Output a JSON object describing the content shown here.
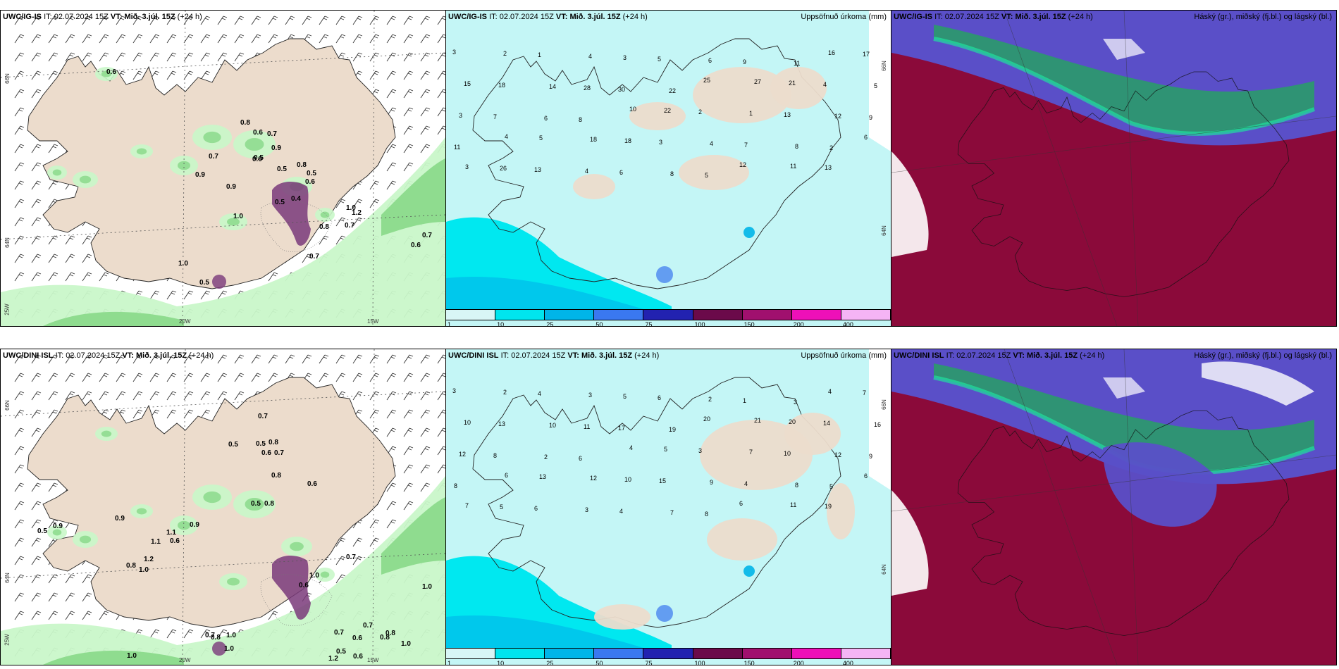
{
  "panels": [
    {
      "id": "p1",
      "header": {
        "model": "UWC/IG-IS",
        "it_label": "IT:",
        "it_value": "02.07.2024 15Z",
        "vt_label": "VT: Mið. 3.júl. 15Z",
        "lead": "(+24 h)"
      },
      "right_title": "",
      "axis": {
        "lat_top": "66N",
        "lat_mid": "64N",
        "lon_left": "25W",
        "lon_a": "20W",
        "lon_b": "15W"
      },
      "labels": [
        {
          "t": "0.6",
          "a": "nw"
        },
        {
          "t": "0.8",
          "a": "c1"
        },
        {
          "t": "0.6",
          "a": "c2"
        },
        {
          "t": "0.7",
          "a": "c3"
        },
        {
          "t": "0.9",
          "a": "c4"
        },
        {
          "t": "0.5",
          "a": "c5"
        },
        {
          "t": "0.9",
          "a": "c6"
        },
        {
          "t": "0.7",
          "a": "w1"
        },
        {
          "t": "0.5",
          "a": "c7"
        },
        {
          "t": "0.8",
          "a": "c8"
        },
        {
          "t": "0.5",
          "a": "c9"
        },
        {
          "t": "0.6",
          "a": "c10"
        },
        {
          "t": "0.9",
          "a": "w2"
        },
        {
          "t": "0.9",
          "a": "w3"
        },
        {
          "t": "0.5",
          "a": "g1"
        },
        {
          "t": "0.4",
          "a": "g2"
        },
        {
          "t": "1.0",
          "a": "w4"
        },
        {
          "t": "1.0",
          "a": "e1"
        },
        {
          "t": "1.2",
          "a": "e2"
        },
        {
          "t": "0.8",
          "a": "e3"
        },
        {
          "t": "0.7",
          "a": "e4"
        },
        {
          "t": "0.7",
          "a": "e5"
        },
        {
          "t": "0.6",
          "a": "e6"
        },
        {
          "t": "1.0",
          "a": "s1"
        },
        {
          "t": "0.5",
          "a": "s2"
        },
        {
          "t": "0.7",
          "a": "s3"
        }
      ]
    },
    {
      "id": "p2",
      "header": {
        "model": "UWC/IG-IS",
        "it_label": "IT:",
        "it_value": "02.07.2024 15Z",
        "vt_label": "VT: Mið. 3.júl. 15Z",
        "lead": "(+24 h)"
      },
      "right_title": "Uppsöfnuð úrkoma (mm)",
      "axis": {
        "lat_top": "66N",
        "lat_mid": "64N"
      },
      "colorbar": {
        "ticks": [
          "1",
          "10",
          "25",
          "50",
          "75",
          "100",
          "150",
          "200",
          "400"
        ],
        "colors": [
          "#d8f6f6",
          "#00e5ee",
          "#00b5e8",
          "#3a78f0",
          "#2222b0",
          "#6b0a4a",
          "#a0106e",
          "#ee10b8",
          "#f5b4f5"
        ]
      },
      "labels": [
        "3",
        "2",
        "1",
        "4",
        "3",
        "5",
        "6",
        "9",
        "11",
        "16",
        "17",
        "15",
        "18",
        "14",
        "28",
        "30",
        "22",
        "25",
        "27",
        "21",
        "4",
        "5",
        "3",
        "7",
        "6",
        "8",
        "10",
        "22",
        "2",
        "1",
        "13",
        "12",
        "9",
        "11",
        "4",
        "5",
        "18",
        "18",
        "3",
        "4",
        "7",
        "8",
        "2",
        "6",
        "3",
        "26",
        "13",
        "4",
        "6",
        "8",
        "5",
        "12",
        "11",
        "13"
      ]
    },
    {
      "id": "p3",
      "header": {
        "model": "UWC/IG-IS",
        "it_label": "IT:",
        "it_value": "02.07.2024 15Z",
        "vt_label": "VT: Mið. 3.júl. 15Z",
        "lead": "(+24 h)"
      },
      "right_title": "Háský (gr.), miðský (fj.bl.) og lágský (bl.)"
    },
    {
      "id": "p4",
      "header": {
        "model": "UWC/DINI ISL",
        "it_label": "IT:",
        "it_value": "02.07.2024 15Z",
        "vt_label": "VT: Mið. 3.júl. 15Z",
        "lead": "(+24 h)"
      },
      "right_title": "",
      "axis": {
        "lat_top": "66N",
        "lat_mid": "64N",
        "lon_left": "25W",
        "lon_a": "20W",
        "lon_b": "15W"
      },
      "labels": [
        {
          "t": "0.7",
          "a": "n1"
        },
        {
          "t": "0.5",
          "a": "c1"
        },
        {
          "t": "0.5",
          "a": "c2"
        },
        {
          "t": "0.8",
          "a": "c3"
        },
        {
          "t": "0.6",
          "a": "c4"
        },
        {
          "t": "0.7",
          "a": "c5"
        },
        {
          "t": "0.8",
          "a": "c6"
        },
        {
          "t": "0.6",
          "a": "c7"
        },
        {
          "t": "0.5",
          "a": "c8"
        },
        {
          "t": "0.8",
          "a": "c9"
        },
        {
          "t": "0.9",
          "a": "w1"
        },
        {
          "t": "0.5",
          "a": "w2"
        },
        {
          "t": "0.9",
          "a": "w3"
        },
        {
          "t": "0.9",
          "a": "w4"
        },
        {
          "t": "1.1",
          "a": "w5"
        },
        {
          "t": "0.6",
          "a": "w6"
        },
        {
          "t": "1.1",
          "a": "w7"
        },
        {
          "t": "1.2",
          "a": "w8"
        },
        {
          "t": "0.8",
          "a": "w9"
        },
        {
          "t": "1.0",
          "a": "w10"
        },
        {
          "t": "0.7",
          "a": "e1"
        },
        {
          "t": "1.0",
          "a": "e2"
        },
        {
          "t": "0.6",
          "a": "e3"
        },
        {
          "t": "1.0",
          "a": "e4"
        },
        {
          "t": "0.7",
          "a": "s1"
        },
        {
          "t": "0.8",
          "a": "s2"
        },
        {
          "t": "1.0",
          "a": "s3"
        },
        {
          "t": "1.0",
          "a": "s4"
        },
        {
          "t": "0.7",
          "a": "o1"
        },
        {
          "t": "0.6",
          "a": "o2"
        },
        {
          "t": "0.7",
          "a": "o3"
        },
        {
          "t": "0.8",
          "a": "o4"
        },
        {
          "t": "0.5",
          "a": "o5"
        },
        {
          "t": "1.2",
          "a": "o6"
        },
        {
          "t": "0.6",
          "a": "o7"
        },
        {
          "t": "0.8",
          "a": "o8"
        },
        {
          "t": "1.0",
          "a": "o9"
        },
        {
          "t": "1.0",
          "a": "o10"
        }
      ]
    },
    {
      "id": "p5",
      "header": {
        "model": "UWC/DINI ISL",
        "it_label": "IT:",
        "it_value": "02.07.2024 15Z",
        "vt_label": "VT: Mið. 3.júl. 15Z",
        "lead": "(+24 h)"
      },
      "right_title": "Uppsöfnuð úrkoma (mm)",
      "axis": {
        "lat_top": "66N",
        "lat_mid": "64N"
      },
      "colorbar": {
        "ticks": [
          "1",
          "10",
          "25",
          "50",
          "75",
          "100",
          "150",
          "200",
          "400"
        ],
        "colors": [
          "#d8f6f6",
          "#00e5ee",
          "#00b5e8",
          "#3a78f0",
          "#2222b0",
          "#6b0a4a",
          "#a0106e",
          "#ee10b8",
          "#f5b4f5"
        ]
      },
      "labels": [
        "3",
        "2",
        "4",
        "3",
        "5",
        "6",
        "2",
        "1",
        "3",
        "4",
        "7",
        "10",
        "13",
        "10",
        "11",
        "17",
        "19",
        "20",
        "21",
        "20",
        "14",
        "16",
        "12",
        "8",
        "2",
        "6",
        "4",
        "5",
        "3",
        "7",
        "10",
        "12",
        "9",
        "8",
        "6",
        "13",
        "12",
        "10",
        "15",
        "9",
        "4",
        "8",
        "5",
        "6",
        "7",
        "5",
        "6",
        "3",
        "4",
        "7",
        "8",
        "6",
        "11",
        "19"
      ]
    },
    {
      "id": "p6",
      "header": {
        "model": "UWC/DINI ISL",
        "it_label": "IT:",
        "it_value": "02.07.2024 15Z",
        "vt_label": "VT: Mið. 3.júl. 15Z",
        "lead": "(+24 h)"
      },
      "right_title": "Háský (gr.), miðský (fj.bl.) og lágský (bl.)"
    }
  ],
  "colors": {
    "land": "#ecdccc",
    "precip_light": "#c9f7c9",
    "precip_med": "#8fdc8f",
    "precip_dark": "#2e8b3e",
    "purple": "#7a3a7a",
    "cyan_light": "#c4f6f6",
    "cyan": "#00e8f0",
    "high_cloud": "#5a4fc8",
    "mid_cloud": "#2a9a6a",
    "low_cloud": "#8b0a3a"
  }
}
